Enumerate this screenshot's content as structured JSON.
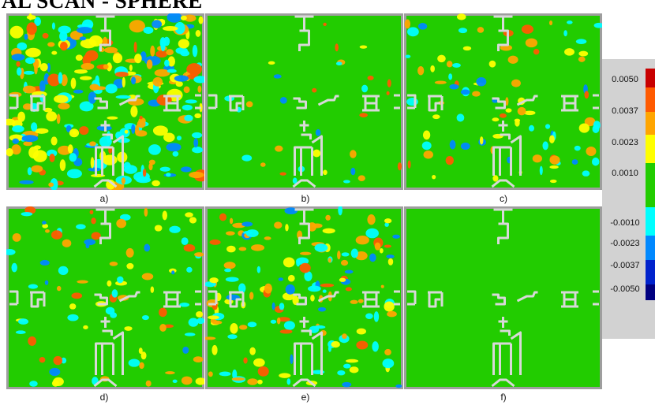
{
  "title": "AL SCAN - SPHERE",
  "panels": [
    {
      "id": "a",
      "label": "a)",
      "noise": 1.0
    },
    {
      "id": "b",
      "label": "b)",
      "noise": 0.12
    },
    {
      "id": "c",
      "label": "c)",
      "noise": 0.35
    },
    {
      "id": "d",
      "label": "d)",
      "noise": 0.35
    },
    {
      "id": "e",
      "label": "e)",
      "noise": 0.6
    },
    {
      "id": "f",
      "label": "f)",
      "noise": 0.0
    }
  ],
  "colorbar": {
    "ticks": [
      "0.0050",
      "0.0037",
      "0.0023",
      "0.0010",
      "-0.0010",
      "-0.0023",
      "-0.0037",
      "-0.0050"
    ],
    "colors": [
      "#c80000",
      "#ff5a00",
      "#ffa500",
      "#ffff00",
      "#22cc00",
      "#00ffff",
      "#0088ff",
      "#0022cc",
      "#000080"
    ]
  },
  "colors": {
    "background_field": "#22cc00",
    "frame": "#9e9e9e",
    "part_outline": "#d8d8d8"
  }
}
